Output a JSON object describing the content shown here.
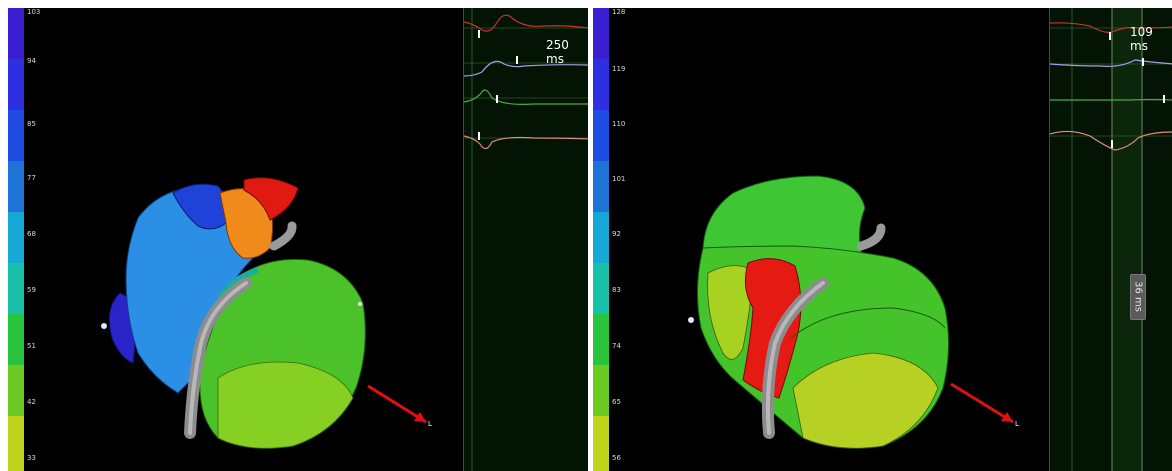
{
  "left_view": {
    "scale": {
      "ticks": [
        "103",
        "94",
        "85",
        "77",
        "68",
        "59",
        "51",
        "42",
        "33"
      ],
      "colors": [
        "#2f17c8",
        "#3a2de0",
        "#2343e4",
        "#1a66d8",
        "#17a6d8",
        "#19c0a8",
        "#22c43c",
        "#5cc820",
        "#bcd21e"
      ]
    },
    "ecg": {
      "duration_readout": "250 ms"
    },
    "orientation_axis": {
      "label": "L",
      "color": "#e01010"
    }
  },
  "right_view": {
    "scale": {
      "ticks": [
        "128",
        "119",
        "110",
        "101",
        "92",
        "83",
        "74",
        "65",
        "56"
      ],
      "colors": [
        "#2f17c8",
        "#3a2de0",
        "#2343e4",
        "#1a66d8",
        "#17a6d8",
        "#19c0a8",
        "#22c43c",
        "#5cc820",
        "#bcd21e"
      ]
    },
    "ecg": {
      "duration_readout": "109 ms",
      "interval_readout": "36 ms"
    },
    "orientation_axis": {
      "label": "L",
      "color": "#e01010"
    }
  }
}
